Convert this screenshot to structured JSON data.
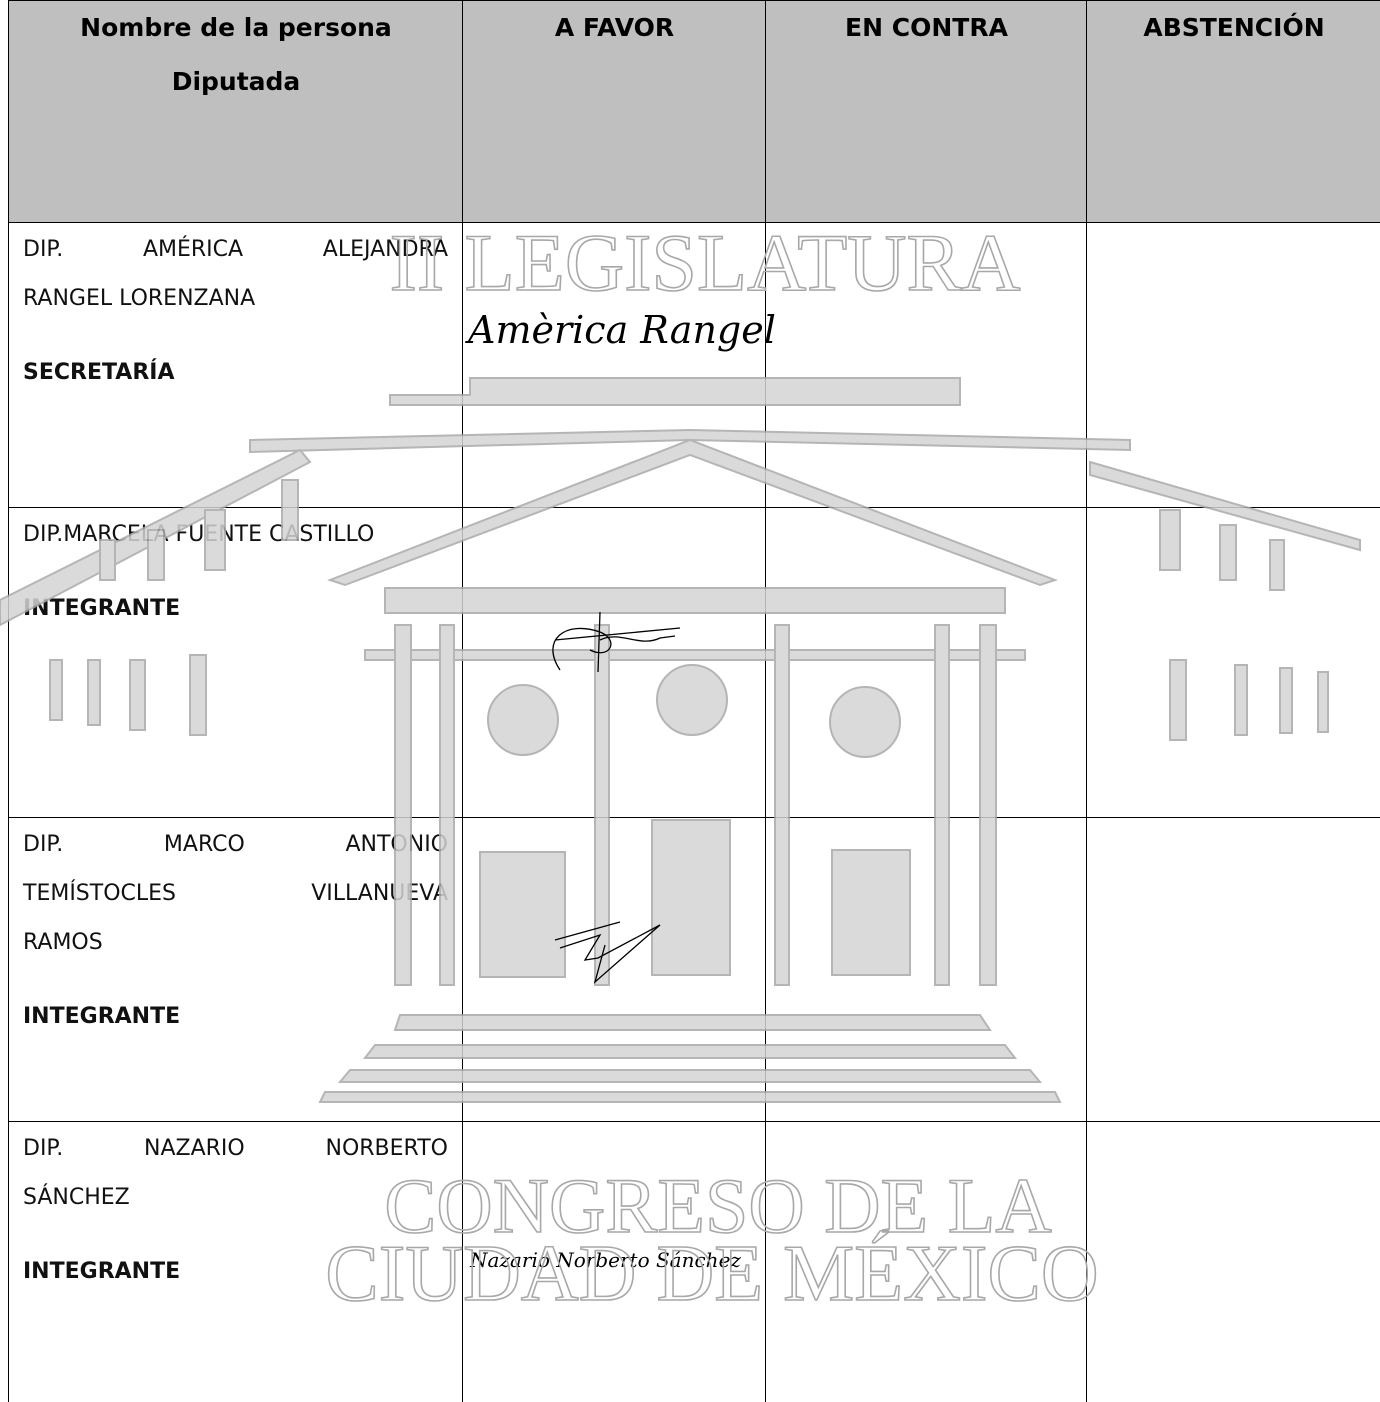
{
  "table": {
    "header": [
      [
        "Nombre de la persona",
        "Diputada"
      ],
      [
        "A FAVOR"
      ],
      [
        "EN CONTRA"
      ],
      [
        "ABSTENCIÓN"
      ]
    ],
    "rows": [
      {
        "name_lines": [
          "DIP. AMÉRICA ALEJANDRA",
          "RANGEL LORENZANA"
        ],
        "role": "SECRETARÍA",
        "signature": "Amèrica Rangel"
      },
      {
        "name_lines": [
          "DIP.MARCELA FUENTE CASTILLO"
        ],
        "role": "INTEGRANTE"
      },
      {
        "name_lines": [
          "DIP. MARCO ANTONIO",
          "TEMÍSTOCLES VILLANUEVA",
          "RAMOS"
        ],
        "role": "INTEGRANTE"
      },
      {
        "name_lines": [
          "DIP. NAZARIO NORBERTO",
          "SÁNCHEZ"
        ],
        "role": "INTEGRANTE",
        "signature": "Nazario Norberto Sánchez"
      }
    ]
  },
  "watermark": {
    "lines": [
      "II LEGISLATURA",
      "CONGRESO DE LA",
      "CIUDAD DE MÉXICO"
    ]
  }
}
